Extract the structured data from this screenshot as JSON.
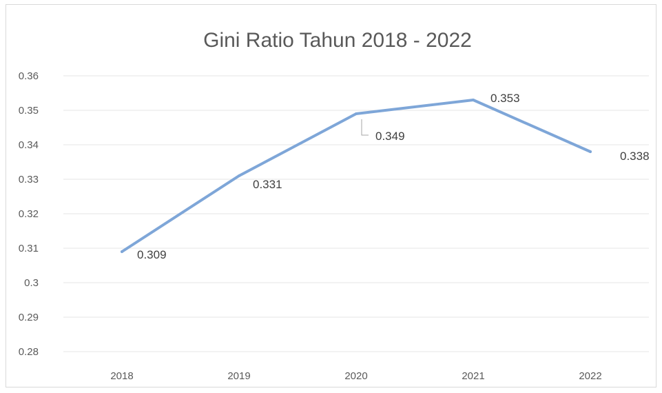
{
  "chart_data": {
    "type": "line",
    "title": "Gini Ratio Tahun 2018 - 2022",
    "xlabel": "",
    "ylabel": "",
    "categories": [
      "2018",
      "2019",
      "2020",
      "2021",
      "2022"
    ],
    "series": [
      {
        "values": [
          0.309,
          0.331,
          0.349,
          0.353,
          0.338
        ],
        "data_labels": [
          "0.309",
          "0.331",
          "0.349",
          "0.353",
          "0.338"
        ],
        "color": "#7ea6d8"
      }
    ],
    "y_ticks": [
      "0.28",
      "0.29",
      "0.3",
      "0.31",
      "0.32",
      "0.33",
      "0.34",
      "0.35",
      "0.36"
    ],
    "ylim": [
      0.28,
      0.36
    ],
    "grid": true,
    "legend": "none"
  }
}
